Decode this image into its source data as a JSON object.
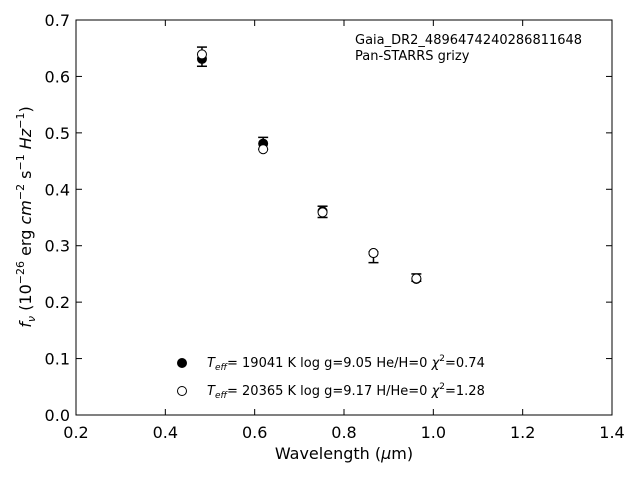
{
  "chart_data": {
    "type": "scatter",
    "annotation_lines": [
      "Gaia_DR2_4896474240286811648",
      "Pan-STARRS grizy"
    ],
    "xlabel": {
      "main": "Wavelength (",
      "greek": "μ",
      "rest": "m)"
    },
    "ylabel": {
      "f": "f",
      "nu": "ν",
      "open": " (10",
      "exp1": "−26",
      "mid1": " erg ",
      "cm": "cm",
      "exp2": "−2",
      "s": " s",
      "exp3": "−1",
      "hz": " Hz",
      "exp4": "−1",
      "close": ")"
    },
    "xlim": [
      0.2,
      1.4
    ],
    "ylim": [
      0.0,
      0.7
    ],
    "xticks": [
      "0.2",
      "0.4",
      "0.6",
      "0.8",
      "1.0",
      "1.2",
      "1.4"
    ],
    "yticks": [
      "0.0",
      "0.1",
      "0.2",
      "0.3",
      "0.4",
      "0.5",
      "0.6",
      "0.7"
    ],
    "observed": {
      "x": [
        0.482,
        0.619,
        0.752,
        0.866,
        0.962
      ],
      "y": [
        0.634,
        0.476,
        0.359,
        0.285,
        0.242
      ],
      "yerr_low": [
        0.016,
        0.005,
        0.009,
        0.015,
        0.005
      ],
      "yerr_high": [
        0.018,
        0.016,
        0.011,
        0.004,
        0.008
      ]
    },
    "series": [
      {
        "marker": "filled",
        "legend": {
          "T": "T",
          "eff": "eff",
          "values": "= 19041 K  log g=9.05  He/H=0  ",
          "chi": "χ",
          "chi_exp": "2",
          "chi_val": "=0.74"
        },
        "x": [
          0.482,
          0.619,
          0.752,
          0.866,
          0.962
        ],
        "y": [
          0.631,
          0.481,
          0.361,
          0.287,
          0.241
        ]
      },
      {
        "marker": "open",
        "legend": {
          "T": "T",
          "eff": "eff",
          "values": "= 20365 K  log g=9.17  H/He=0  ",
          "chi": "χ",
          "chi_exp": "2",
          "chi_val": "=1.28"
        },
        "x": [
          0.482,
          0.619,
          0.752,
          0.866,
          0.962
        ],
        "y": [
          0.639,
          0.471,
          0.359,
          0.287,
          0.242
        ]
      }
    ],
    "grid": false,
    "legend_position": "lower center"
  }
}
